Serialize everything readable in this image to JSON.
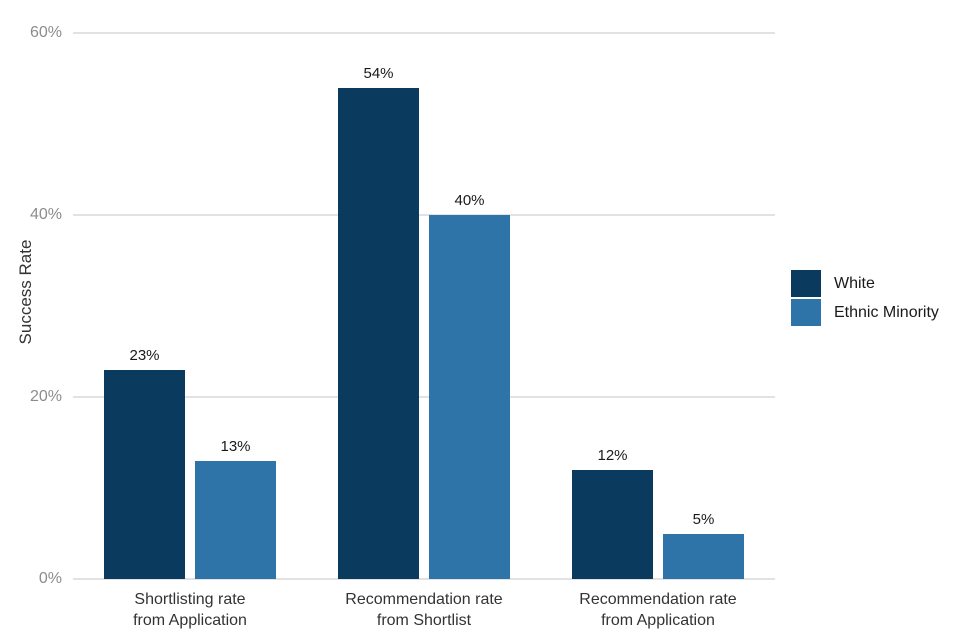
{
  "chart_data": {
    "type": "bar",
    "title": "",
    "ylabel": "Success Rate",
    "xlabel": "",
    "ylim": [
      0,
      60
    ],
    "grid": "horizontal-major",
    "legend_position": "right",
    "yticks": [
      {
        "value": 0,
        "label": "0%"
      },
      {
        "value": 20,
        "label": "20%"
      },
      {
        "value": 40,
        "label": "40%"
      },
      {
        "value": 60,
        "label": "60%"
      }
    ],
    "categories": [
      {
        "lines": [
          "Shortlisting rate",
          "from Application"
        ]
      },
      {
        "lines": [
          "Recommendation rate",
          "from Shortlist"
        ]
      },
      {
        "lines": [
          "Recommendation rate",
          "from Application"
        ]
      }
    ],
    "series": [
      {
        "name": "White",
        "color": "#0a3a5e",
        "values": [
          23,
          54,
          12
        ],
        "value_labels": [
          "23%",
          "54%",
          "12%"
        ]
      },
      {
        "name": "Ethnic Minority",
        "color": "#2e74a8",
        "values": [
          13,
          40,
          5
        ],
        "value_labels": [
          "13%",
          "40%",
          "5%"
        ]
      }
    ]
  },
  "colors": {
    "background": "#ffffff",
    "gridline": "#e2e2e2",
    "tick_text": "#8c8c8c",
    "category_text": "#333333",
    "value_text": "#1a1a1a",
    "axis_title_text": "#333333"
  }
}
